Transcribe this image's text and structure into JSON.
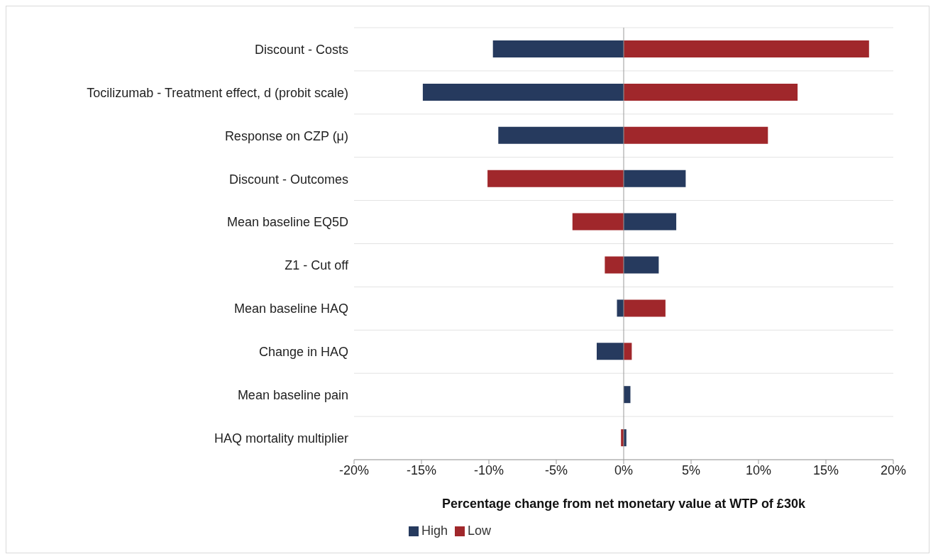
{
  "chart_data": {
    "type": "bar",
    "orientation": "horizontal",
    "xlabel": "Percentage change from net monetary value at WTP of £30k",
    "categories": [
      "Discount - Costs",
      "Tocilizumab - Treatment effect, d (probit scale)",
      "Response on CZP (μ)",
      "Discount - Outcomes",
      "Mean baseline EQ5D",
      "Z1 - Cut off",
      "Mean baseline HAQ",
      "Change in HAQ",
      "Mean baseline pain",
      "HAQ mortality multiplier"
    ],
    "series": [
      {
        "name": "High",
        "color": "#263a5e",
        "values": [
          -9.7,
          -14.9,
          -9.3,
          4.6,
          3.9,
          2.6,
          -0.5,
          -2.0,
          0.5,
          0.2
        ]
      },
      {
        "name": "Low",
        "color": "#a0272b",
        "values": [
          18.2,
          12.9,
          10.7,
          -10.1,
          -3.8,
          -1.4,
          3.1,
          0.6,
          0,
          -0.2
        ]
      }
    ],
    "xlim": [
      -20,
      20
    ],
    "xticks": [
      {
        "value": -20,
        "label": "-20%"
      },
      {
        "value": -15,
        "label": "-15%"
      },
      {
        "value": -10,
        "label": "-10%"
      },
      {
        "value": -5,
        "label": "-5%"
      },
      {
        "value": 0,
        "label": "0%"
      },
      {
        "value": 5,
        "label": "5%"
      },
      {
        "value": 10,
        "label": "10%"
      },
      {
        "value": 15,
        "label": "15%"
      },
      {
        "value": 20,
        "label": "20%"
      }
    ],
    "stacked": true,
    "grid": "y",
    "legend": "bottom"
  }
}
